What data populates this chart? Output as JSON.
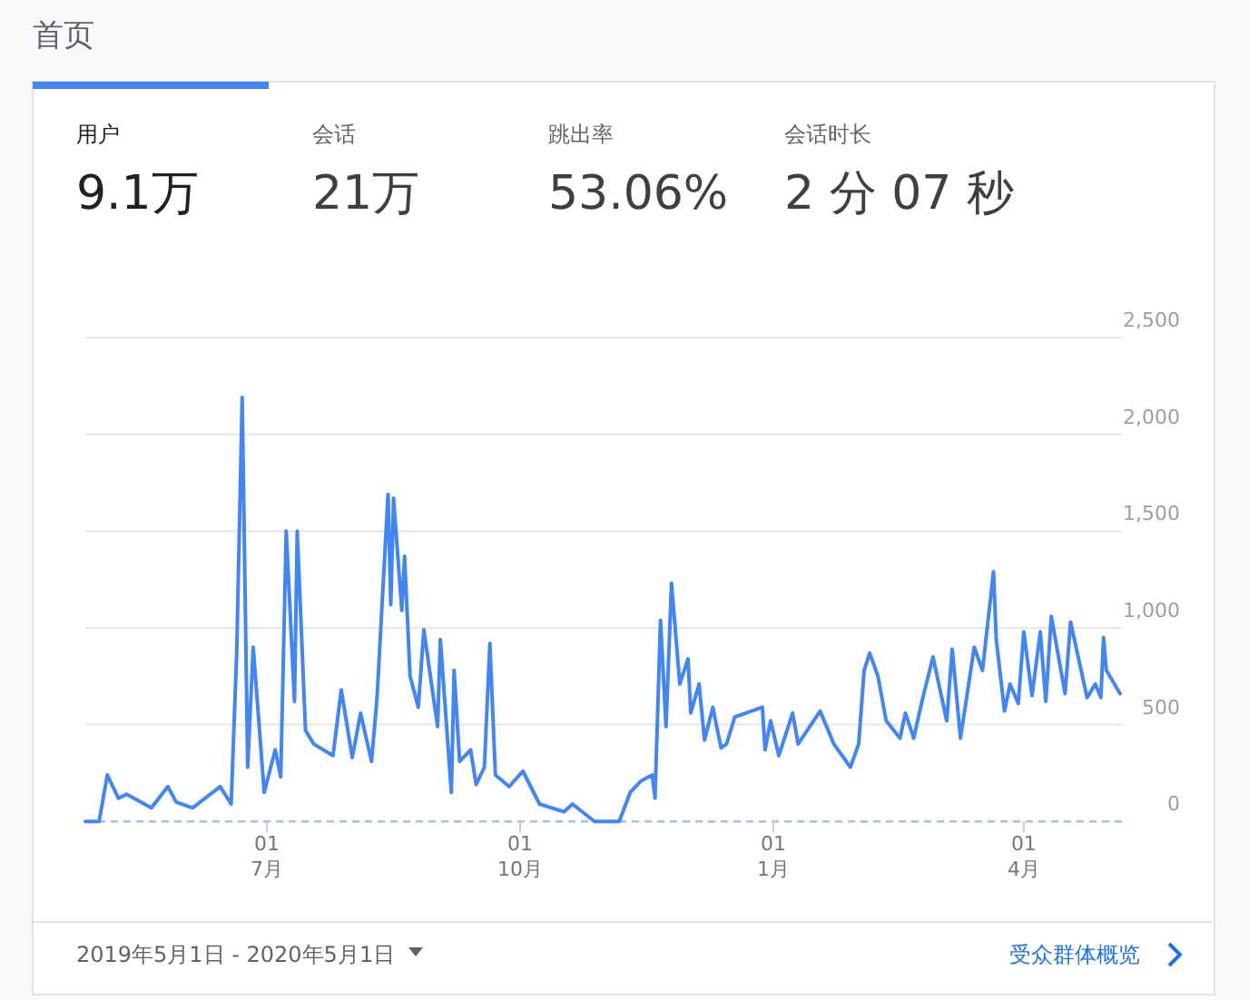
{
  "chart_data": {
    "type": "line",
    "title": "首页",
    "annotations": [
      "用户",
      "9.1万",
      "会话",
      "21万",
      "跳出率",
      "53.06%",
      "会话时长",
      "2 分 07 秒",
      "2019年5月1日 - 2020年5月1日",
      "受众群体概览"
    ],
    "x": [
      "2019-04-26",
      "2019-05-01",
      "2019-05-04",
      "2019-05-08",
      "2019-05-11",
      "2019-05-20",
      "2019-05-26",
      "2019-05-29",
      "2019-06-04",
      "2019-06-14",
      "2019-06-18",
      "2019-06-20",
      "2019-06-22",
      "2019-06-24",
      "2019-06-26",
      "2019-06-30",
      "2019-07-04",
      "2019-07-06",
      "2019-07-08",
      "2019-07-11",
      "2019-07-12",
      "2019-07-15",
      "2019-07-18",
      "2019-07-25",
      "2019-07-28",
      "2019-08-01",
      "2019-08-04",
      "2019-08-08",
      "2019-08-10",
      "2019-08-14",
      "2019-08-15",
      "2019-08-16",
      "2019-08-19",
      "2019-08-20",
      "2019-08-22",
      "2019-08-25",
      "2019-08-27",
      "2019-09-01",
      "2019-09-02",
      "2019-09-06",
      "2019-09-07",
      "2019-09-09",
      "2019-09-13",
      "2019-09-15",
      "2019-09-18",
      "2019-09-20",
      "2019-09-22",
      "2019-09-27",
      "2019-10-02",
      "2019-10-08",
      "2019-10-17",
      "2019-10-20",
      "2019-10-28",
      "2019-11-06",
      "2019-11-10",
      "2019-11-14",
      "2019-11-18",
      "2019-11-19",
      "2019-11-21",
      "2019-11-23",
      "2019-11-25",
      "2019-11-28",
      "2019-12-01",
      "2019-12-02",
      "2019-12-05",
      "2019-12-07",
      "2019-12-10",
      "2019-12-13",
      "2019-12-15",
      "2019-12-18",
      "2019-12-28",
      "2019-12-29",
      "2019-12-31",
      "2020-01-03",
      "2020-01-08",
      "2020-01-10",
      "2020-01-18",
      "2020-01-23",
      "2020-01-29",
      "2020-02-01",
      "2020-02-03",
      "2020-02-05",
      "2020-02-08",
      "2020-02-11",
      "2020-02-16",
      "2020-02-18",
      "2020-02-21",
      "2020-02-24",
      "2020-02-28",
      "2020-03-04",
      "2020-03-06",
      "2020-03-09",
      "2020-03-14",
      "2020-03-17",
      "2020-03-21",
      "2020-03-22",
      "2020-03-25",
      "2020-03-27",
      "2020-03-30",
      "2020-04-01",
      "2020-04-04",
      "2020-04-07",
      "2020-04-09",
      "2020-04-11",
      "2020-04-16",
      "2020-04-18",
      "2020-04-24",
      "2020-04-27",
      "2020-04-29",
      "2020-04-30",
      "2020-05-01",
      "2020-05-06"
    ],
    "series": [
      {
        "color": "#4285f4",
        "values": [
          0,
          0,
          240,
          120,
          140,
          70,
          180,
          100,
          70,
          180,
          90,
          870,
          2190,
          280,
          900,
          150,
          370,
          230,
          1500,
          620,
          1500,
          470,
          400,
          340,
          680,
          330,
          560,
          310,
          640,
          1690,
          1120,
          1670,
          1090,
          1370,
          750,
          590,
          990,
          490,
          940,
          150,
          780,
          310,
          370,
          190,
          280,
          920,
          240,
          180,
          260,
          90,
          50,
          90,
          0,
          0,
          150,
          210,
          240,
          120,
          1040,
          490,
          1230,
          710,
          840,
          560,
          710,
          420,
          590,
          380,
          400,
          540,
          590,
          370,
          520,
          340,
          560,
          400,
          570,
          400,
          280,
          400,
          780,
          870,
          750,
          520,
          430,
          560,
          430,
          620,
          850,
          520,
          890,
          430,
          900,
          780,
          1290,
          940,
          570,
          710,
          610,
          980,
          650,
          980,
          620,
          1060,
          660,
          1030,
          640,
          710,
          640,
          950,
          780,
          660
        ]
      }
    ],
    "xlim": [
      "2019-04-26",
      "2020-05-06"
    ],
    "xticks": [
      {
        "value": "2019-07-01",
        "label": "01\n7月"
      },
      {
        "value": "2019-10-01",
        "label": "01\n10月"
      },
      {
        "value": "2020-01-01",
        "label": "01\n1月"
      },
      {
        "value": "2020-04-01",
        "label": "01\n4月"
      }
    ],
    "ylim": [
      0,
      2500
    ],
    "yticks": [
      0,
      500,
      {
        "value": 1000,
        "label": "1,000"
      },
      {
        "value": 1500,
        "label": "1,500"
      },
      {
        "value": 2000,
        "label": "2,000"
      },
      {
        "value": 2500,
        "label": "2,500"
      }
    ],
    "grid": "y",
    "marker": "none",
    "line_style": "solid"
  }
}
